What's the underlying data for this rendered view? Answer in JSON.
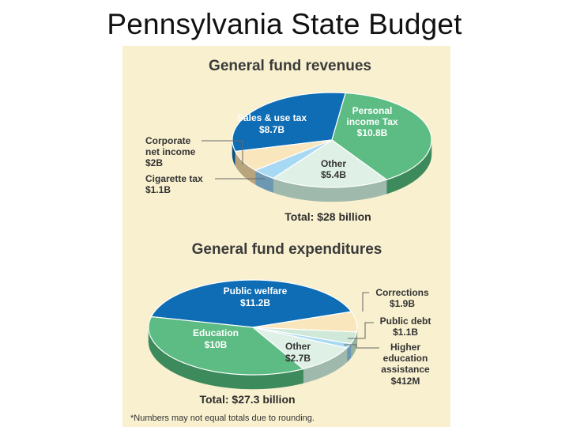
{
  "slide": {
    "title": "Pennsylvania State Budget"
  },
  "colors": {
    "background": "#f8f0cf",
    "blue": "#0e6db4",
    "green": "#5cbc83",
    "cream": "#fae6bd",
    "light_blue": "#a8d9f4",
    "mint": "#dff1e6",
    "slate": "#8fb2c6"
  },
  "chart_data": [
    {
      "type": "pie",
      "title": "General fund revenues",
      "total_label": "Total: $28 billion",
      "slices": [
        {
          "name": "Sales & use tax",
          "value_label": "$8.7B",
          "value": 8.7,
          "color": "#0e6db4",
          "side": "#0a4f86"
        },
        {
          "name": "Personal income Tax",
          "value_label": "$10.8B",
          "value": 10.8,
          "color": "#5cbc83",
          "side": "#3d8a5c"
        },
        {
          "name": "Other",
          "value_label": "$5.4B",
          "value": 5.4,
          "color": "#dff1e6",
          "side": "#9fb9ad"
        },
        {
          "name": "Cigarette tax",
          "value_label": "$1.1B",
          "value": 1.1,
          "color": "#a8d9f4",
          "side": "#6c98b3"
        },
        {
          "name": "Corporate net income",
          "value_label": "$2B",
          "value": 2.0,
          "color": "#fae6bd",
          "side": "#b8a57e"
        }
      ],
      "labels": {
        "sales": {
          "line1": "Sales & use tax",
          "line2": "$8.7B"
        },
        "personal": {
          "line1": "Personal",
          "line2": "income Tax",
          "line3": "$10.8B"
        },
        "other": {
          "line1": "Other",
          "line2": "$5.4B"
        },
        "corporate": {
          "line1": "Corporate",
          "line2": "net income",
          "line3": "$2B"
        },
        "cigarette": {
          "line1": "Cigarette tax",
          "line2": "$1.1B"
        }
      }
    },
    {
      "type": "pie",
      "title": "General fund expenditures",
      "total_label": "Total: $27.3 billion",
      "slices": [
        {
          "name": "Public welfare",
          "value_label": "$11.2B",
          "value": 11.2,
          "color": "#0e6db4",
          "side": "#0a4f86"
        },
        {
          "name": "Corrections",
          "value_label": "$1.9B",
          "value": 1.9,
          "color": "#fae6bd",
          "side": "#b8a57e"
        },
        {
          "name": "Public debt",
          "value_label": "$1.1B",
          "value": 1.1,
          "color": "#cfe8d8",
          "side": "#93b3a2"
        },
        {
          "name": "Higher education assistance",
          "value_label": "$412M",
          "value": 0.412,
          "color": "#a8d9f4",
          "side": "#6c98b3"
        },
        {
          "name": "Other",
          "value_label": "$2.7B",
          "value": 2.7,
          "color": "#dff1e6",
          "side": "#9fb9ad"
        },
        {
          "name": "Education",
          "value_label": "$10B",
          "value": 10.0,
          "color": "#5cbc83",
          "side": "#3d8a5c"
        }
      ],
      "labels": {
        "welfare": {
          "line1": "Public welfare",
          "line2": "$11.2B"
        },
        "education": {
          "line1": "Education",
          "line2": "$10B"
        },
        "other": {
          "line1": "Other",
          "line2": "$2.7B"
        },
        "corrections": {
          "line1": "Corrections",
          "line2": "$1.9B"
        },
        "debt": {
          "line1": "Public debt",
          "line2": "$1.1B"
        },
        "higher": {
          "line1": "Higher",
          "line2": "education",
          "line3": "assistance",
          "line4": "$412M"
        }
      }
    }
  ],
  "footnote": "*Numbers may not equal totals due to rounding."
}
